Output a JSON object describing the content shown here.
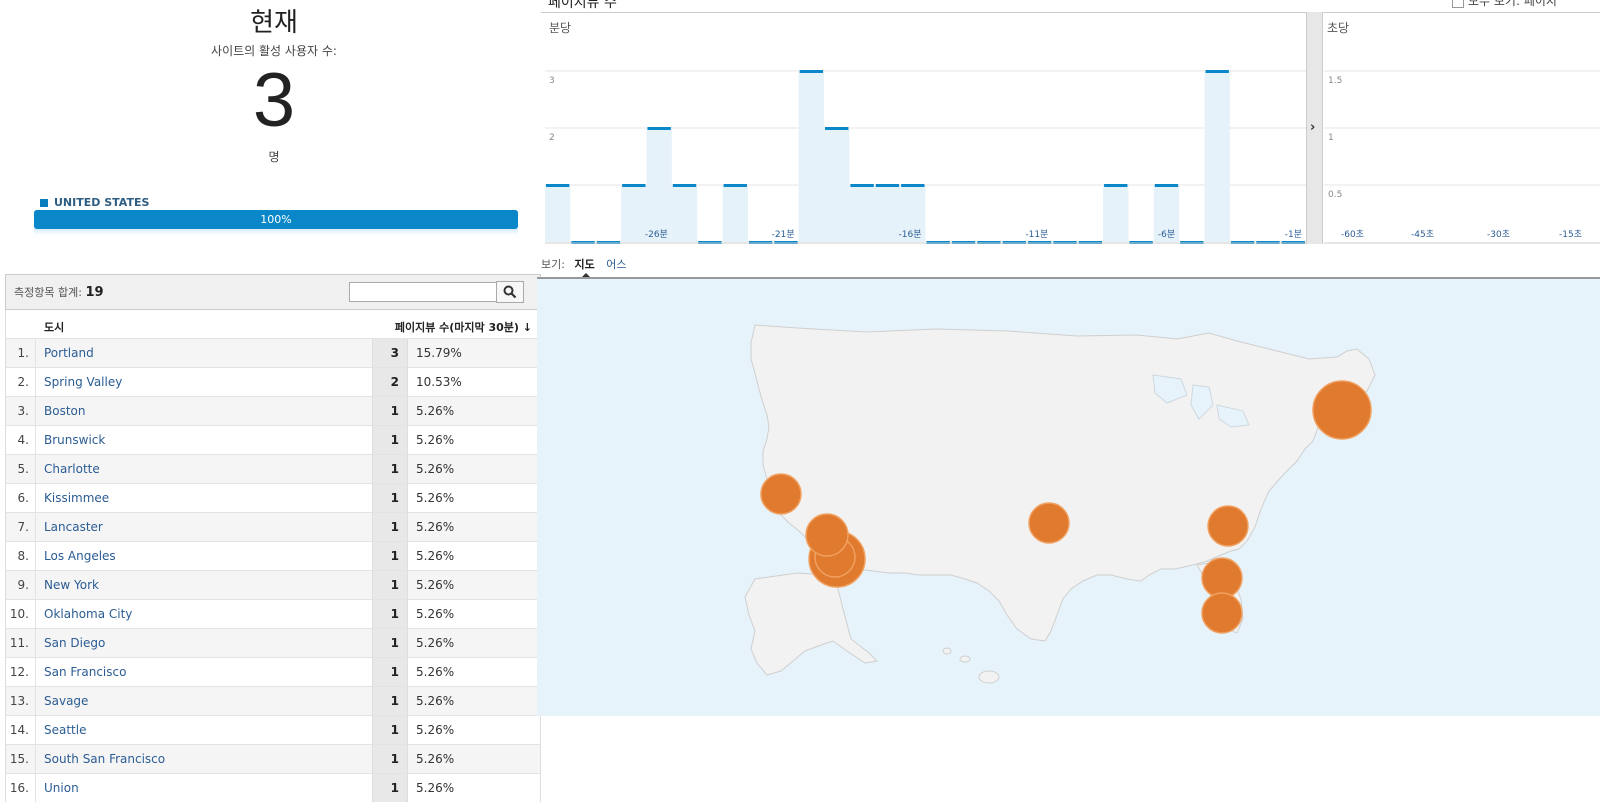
{
  "summary": {
    "title": "현재",
    "subtitle": "사이트의 활성 사용자 수:",
    "active_users": "3",
    "unit": "명",
    "country": "UNITED STATES",
    "country_percent_label": "100%",
    "country_share": 1.0,
    "bar_color": "#0a87c8"
  },
  "table": {
    "total_label": "측정항목 합계:",
    "total_value": "19",
    "search_placeholder": "",
    "col_city": "도시",
    "col_pageviews": "페이지뷰 수(마지막 30분) ↓",
    "rows": [
      {
        "idx": "1.",
        "city": "Portland",
        "views": "3",
        "pct": "15.79%"
      },
      {
        "idx": "2.",
        "city": "Spring Valley",
        "views": "2",
        "pct": "10.53%"
      },
      {
        "idx": "3.",
        "city": "Boston",
        "views": "1",
        "pct": "5.26%"
      },
      {
        "idx": "4.",
        "city": "Brunswick",
        "views": "1",
        "pct": "5.26%"
      },
      {
        "idx": "5.",
        "city": "Charlotte",
        "views": "1",
        "pct": "5.26%"
      },
      {
        "idx": "6.",
        "city": "Kissimmee",
        "views": "1",
        "pct": "5.26%"
      },
      {
        "idx": "7.",
        "city": "Lancaster",
        "views": "1",
        "pct": "5.26%"
      },
      {
        "idx": "8.",
        "city": "Los Angeles",
        "views": "1",
        "pct": "5.26%"
      },
      {
        "idx": "9.",
        "city": "New York",
        "views": "1",
        "pct": "5.26%"
      },
      {
        "idx": "10.",
        "city": "Oklahoma City",
        "views": "1",
        "pct": "5.26%"
      },
      {
        "idx": "11.",
        "city": "San Diego",
        "views": "1",
        "pct": "5.26%"
      },
      {
        "idx": "12.",
        "city": "San Francisco",
        "views": "1",
        "pct": "5.26%"
      },
      {
        "idx": "13.",
        "city": "Savage",
        "views": "1",
        "pct": "5.26%"
      },
      {
        "idx": "14.",
        "city": "Seattle",
        "views": "1",
        "pct": "5.26%"
      },
      {
        "idx": "15.",
        "city": "South San Francisco",
        "views": "1",
        "pct": "5.26%"
      },
      {
        "idx": "16.",
        "city": "Union",
        "views": "1",
        "pct": "5.26%"
      }
    ]
  },
  "chart": {
    "title": "페이지뷰 수",
    "legend": "모두 보기: 페이지",
    "per_minute_label": "분당",
    "per_second_label": "초당",
    "next_arrow": "›",
    "bar_color": "#e6f2fa",
    "line_color": "#0a87c8"
  },
  "chart_data": [
    {
      "type": "bar",
      "title": "분당",
      "x": [
        -30,
        -29,
        -28,
        -27,
        -26,
        -25,
        -24,
        -23,
        -22,
        -21,
        -20,
        -19,
        -18,
        -17,
        -16,
        -15,
        -14,
        -13,
        -12,
        -11,
        -10,
        -9,
        -8,
        -7,
        -6,
        -5,
        -4,
        -3,
        -2,
        -1
      ],
      "values": [
        1,
        0,
        0,
        1,
        2,
        1,
        0,
        1,
        0,
        0,
        3,
        2,
        1,
        1,
        1,
        0,
        0,
        0,
        0,
        0,
        0,
        0,
        1,
        0,
        1,
        0,
        3,
        0,
        0,
        0
      ],
      "x_tick_labels": [
        "-26분",
        "-21분",
        "-16분",
        "-11분",
        "-6분",
        "-1분"
      ],
      "y_ticks": [
        "1",
        "2",
        "3"
      ],
      "ylim": [
        0,
        3.5
      ]
    },
    {
      "type": "bar",
      "title": "초당",
      "values": [],
      "x_tick_labels": [
        "-60초",
        "-45초",
        "-30초",
        "-15초"
      ],
      "y_ticks": [
        "0.5",
        "1",
        "1.5"
      ],
      "ylim": [
        0,
        2
      ]
    }
  ],
  "view": {
    "label": "보기:",
    "map_tab": "지도",
    "earth_tab": "어스"
  },
  "map": {
    "land_color": "#f2f2f2",
    "water_color": "#e6f3fb",
    "marker_color": "#e07a2e"
  }
}
